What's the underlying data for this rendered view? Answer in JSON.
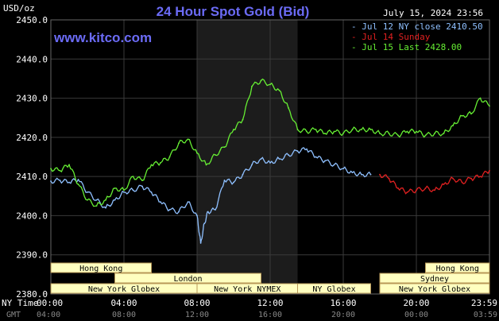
{
  "header": {
    "title": "24 Hour Spot Gold (Bid)",
    "timestamp": "July 15, 2024 23:56",
    "website": "www.kitco.com",
    "y_unit_label": "USD/oz"
  },
  "legend": [
    {
      "label": "- Jul 12 NY close 2410.50",
      "color": "#8fc0ff"
    },
    {
      "label": "- Jul 14 Sunday",
      "color": "#e02020"
    },
    {
      "label": "- Jul 15 Last 2428.00",
      "color": "#66ee33"
    }
  ],
  "time_axis": {
    "ny_label": "NY Time",
    "gmt_label": "GMT",
    "ny_ticks": [
      "00:00",
      "04:00",
      "08:00",
      "12:00",
      "16:00",
      "20:00",
      "23:59"
    ],
    "gmt_ticks": [
      "04:00",
      "08:00",
      "12:00",
      "16:00",
      "20:00",
      "00:00",
      "03:59"
    ]
  },
  "sessions": [
    {
      "label": "Hong Kong",
      "start": 0,
      "end": 5.5,
      "row": 0
    },
    {
      "label": "Hong Kong",
      "start": 20.5,
      "end": 24,
      "row": 0
    },
    {
      "label": "London",
      "start": 3.5,
      "end": 11.5,
      "row": 1
    },
    {
      "label": "Sydney",
      "start": 18,
      "end": 24,
      "row": 1
    },
    {
      "label": "New York Globex",
      "start": 0,
      "end": 8.0,
      "row": 2
    },
    {
      "label": "New York NYMEX",
      "start": 8.0,
      "end": 13.5,
      "row": 2
    },
    {
      "label": "NY Globex",
      "start": 13.5,
      "end": 17.5,
      "row": 2
    },
    {
      "label": "New York Globex",
      "start": 18,
      "end": 24,
      "row": 2
    }
  ],
  "colors": {
    "background": "#000000",
    "plot_background": "#000000",
    "nymex_shade": "#1c1c1c",
    "grid": "#3a3a3a",
    "session_fill": "#ffffc0",
    "session_border": "#b89858",
    "axis_text": "#ffffff",
    "gmt_text": "#888888"
  },
  "chart_data": {
    "type": "line",
    "title": "24 Hour Spot Gold (Bid)",
    "ylabel": "USD/oz",
    "ylim": [
      2380,
      2450
    ],
    "y_ticks": [
      "2450.0",
      "2440.0",
      "2430.0",
      "2420.0",
      "2410.0",
      "2400.0",
      "2390.0",
      "2380.0"
    ],
    "xlim": [
      0,
      24
    ],
    "x_unit": "hours NY time",
    "grid": true,
    "nymex_session_hours": [
      8.0,
      13.5
    ],
    "series": [
      {
        "name": "Jul 12 NY close 2410.50",
        "color": "#8fc0ff",
        "x": [
          0,
          0.5,
          1,
          1.5,
          2,
          2.5,
          3,
          3.5,
          4,
          4.5,
          5,
          5.5,
          6,
          6.5,
          7,
          7.5,
          8,
          8.2,
          8.4,
          8.6,
          9,
          9.5,
          10,
          10.5,
          11,
          11.5,
          12,
          12.5,
          13,
          13.5,
          14,
          14.5,
          15,
          15.5,
          16,
          16.5,
          17,
          17.5
        ],
        "values": [
          2408.8,
          2409.0,
          2408.5,
          2409.2,
          2406.0,
          2404.0,
          2402.0,
          2404.0,
          2406.0,
          2406.5,
          2407.5,
          2406.0,
          2403.5,
          2401.5,
          2401.0,
          2403.5,
          2400.0,
          2393.0,
          2398.0,
          2401.0,
          2401.5,
          2409.0,
          2408.5,
          2410.5,
          2413.0,
          2414.5,
          2413.5,
          2414.5,
          2415.5,
          2416.5,
          2417.0,
          2415.0,
          2414.0,
          2413.0,
          2412.0,
          2411.0,
          2410.5,
          2410.5
        ]
      },
      {
        "name": "Jul 14 Sunday",
        "color": "#e02020",
        "x": [
          18,
          18.5,
          19,
          19.5,
          20,
          20.5,
          21,
          21.5,
          22,
          22.5,
          23,
          23.5,
          24
        ],
        "values": [
          2410.5,
          2409.5,
          2407.0,
          2406.0,
          2406.5,
          2407.0,
          2406.5,
          2408.0,
          2409.5,
          2408.5,
          2409.5,
          2410.0,
          2411.5
        ]
      },
      {
        "name": "Jul 15 Last 2428.00",
        "color": "#66ee33",
        "x": [
          0,
          0.5,
          1,
          1.5,
          2,
          2.5,
          3,
          3.5,
          4,
          4.5,
          5,
          5.5,
          6,
          6.5,
          7,
          7.5,
          8,
          8.5,
          9,
          9.5,
          10,
          10.5,
          11,
          11.5,
          12,
          12.5,
          13,
          13.5,
          14,
          14.5,
          15,
          15.5,
          16,
          16.5,
          17,
          17.5,
          18,
          18.5,
          19,
          19.5,
          20,
          20.5,
          21,
          21.5,
          22,
          22.5,
          23,
          23.5,
          24
        ],
        "values": [
          2412.0,
          2411.5,
          2413.0,
          2408.0,
          2404.0,
          2402.5,
          2404.0,
          2407.0,
          2406.5,
          2410.0,
          2409.0,
          2413.0,
          2413.5,
          2415.0,
          2418.5,
          2419.5,
          2416.0,
          2413.0,
          2415.5,
          2417.5,
          2422.0,
          2424.5,
          2433.0,
          2434.5,
          2433.5,
          2432.0,
          2427.5,
          2422.0,
          2421.5,
          2422.0,
          2421.0,
          2421.5,
          2421.0,
          2422.0,
          2422.0,
          2422.0,
          2421.0,
          2421.0,
          2420.5,
          2421.5,
          2421.5,
          2420.5,
          2421.0,
          2421.0,
          2423.0,
          2425.5,
          2426.0,
          2430.0,
          2428.0
        ]
      }
    ]
  }
}
